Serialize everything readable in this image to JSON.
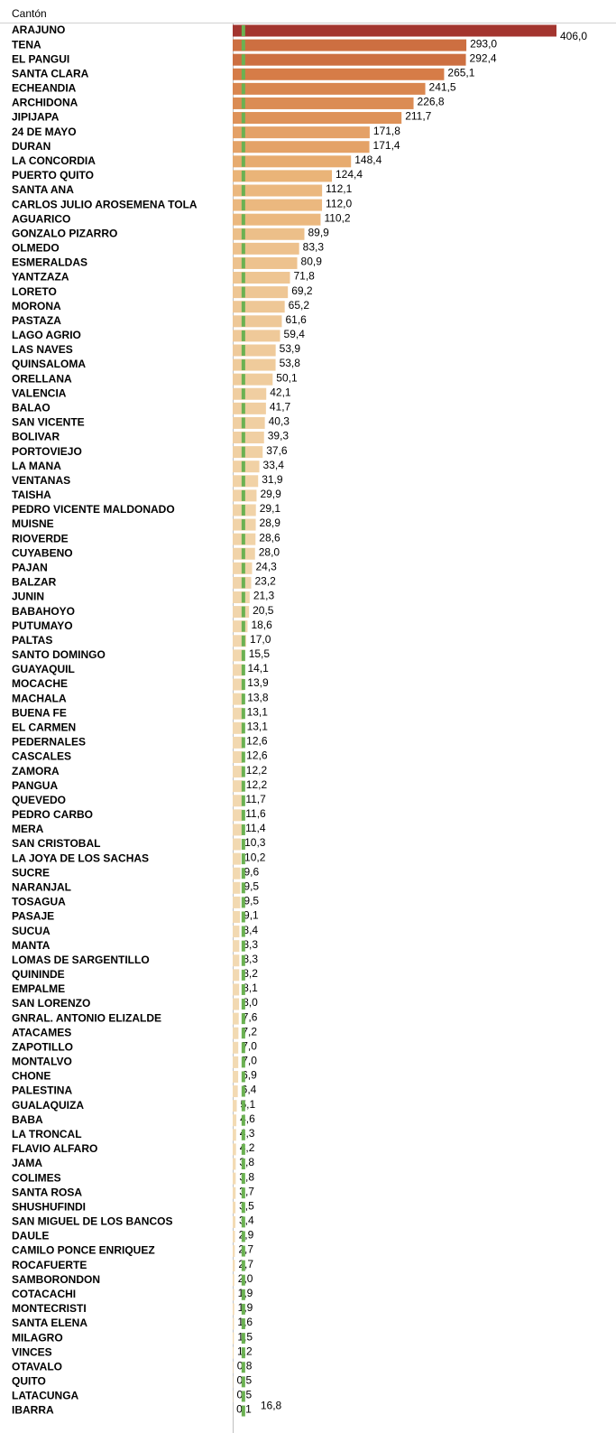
{
  "chart_data": {
    "type": "bar",
    "orientation": "horizontal",
    "header": "Cantón",
    "categories": [
      "ARAJUNO",
      "TENA",
      "EL PANGUI",
      "SANTA CLARA",
      "ECHEANDIA",
      "ARCHIDONA",
      "JIPIJAPA",
      "24 DE MAYO",
      "DURAN",
      "LA CONCORDIA",
      "PUERTO QUITO",
      "SANTA ANA",
      "CARLOS JULIO AROSEMENA TOLA",
      "AGUARICO",
      "GONZALO PIZARRO",
      "OLMEDO",
      "ESMERALDAS",
      "YANTZAZA",
      "LORETO",
      "MORONA",
      "PASTAZA",
      "LAGO AGRIO",
      "LAS NAVES",
      "QUINSALOMA",
      "ORELLANA",
      "VALENCIA",
      "BALAO",
      "SAN VICENTE",
      "BOLIVAR",
      "PORTOVIEJO",
      "LA MANA",
      "VENTANAS",
      "TAISHA",
      "PEDRO VICENTE MALDONADO",
      "MUISNE",
      "RIOVERDE",
      "CUYABENO",
      "PAJAN",
      "BALZAR",
      "JUNIN",
      "BABAHOYO",
      "PUTUMAYO",
      "PALTAS",
      "SANTO DOMINGO",
      "GUAYAQUIL",
      "MOCACHE",
      "MACHALA",
      "BUENA FE",
      "EL CARMEN",
      "PEDERNALES",
      "CASCALES",
      "ZAMORA",
      "PANGUA",
      "QUEVEDO",
      "PEDRO CARBO",
      "MERA",
      "SAN CRISTOBAL",
      "LA JOYA DE LOS SACHAS",
      "SUCRE",
      "NARANJAL",
      "TOSAGUA",
      "PASAJE",
      "SUCUA",
      "MANTA",
      "LOMAS DE SARGENTILLO",
      "QUININDE",
      "EMPALME",
      "SAN LORENZO",
      "GNRAL. ANTONIO ELIZALDE",
      "ATACAMES",
      "ZAPOTILLO",
      "MONTALVO",
      "CHONE",
      "PALESTINA",
      "GUALAQUIZA",
      "BABA",
      "LA TRONCAL",
      "FLAVIO ALFARO",
      "JAMA",
      "COLIMES",
      "SANTA ROSA",
      "SHUSHUFINDI",
      "SAN MIGUEL DE LOS BANCOS",
      "DAULE",
      "CAMILO PONCE ENRIQUEZ",
      "ROCAFUERTE",
      "SAMBORONDON",
      "COTACACHI",
      "MONTECRISTI",
      "SANTA ELENA",
      "MILAGRO",
      "VINCES",
      "OTAVALO",
      "QUITO",
      "LATACUNGA",
      "IBARRA"
    ],
    "values": [
      406.0,
      293.0,
      292.4,
      265.1,
      241.5,
      226.8,
      211.7,
      171.8,
      171.4,
      148.4,
      124.4,
      112.1,
      112.0,
      110.2,
      89.9,
      83.3,
      80.9,
      71.8,
      69.2,
      65.2,
      61.6,
      59.4,
      53.9,
      53.8,
      50.1,
      42.1,
      41.7,
      40.3,
      39.3,
      37.6,
      33.4,
      31.9,
      29.9,
      29.1,
      28.9,
      28.6,
      28.0,
      24.3,
      23.2,
      21.3,
      20.5,
      18.6,
      17.0,
      15.5,
      14.1,
      13.9,
      13.8,
      13.1,
      13.1,
      12.6,
      12.6,
      12.2,
      12.2,
      11.7,
      11.6,
      11.4,
      10.3,
      10.2,
      9.6,
      9.5,
      9.5,
      9.1,
      8.4,
      8.3,
      8.3,
      8.2,
      8.1,
      8.0,
      7.6,
      7.2,
      7.0,
      7.0,
      6.9,
      6.4,
      5.1,
      4.6,
      4.3,
      4.2,
      3.8,
      3.8,
      3.7,
      3.5,
      3.4,
      2.9,
      2.7,
      2.7,
      2.0,
      1.9,
      1.9,
      1.6,
      1.5,
      1.2,
      0.8,
      0.5,
      0.5,
      0.1
    ],
    "value_labels": [
      "406,0",
      "293,0",
      "292,4",
      "265,1",
      "241,5",
      "226,8",
      "211,7",
      "171,8",
      "171,4",
      "148,4",
      "124,4",
      "112,1",
      "112,0",
      "110,2",
      "89,9",
      "83,3",
      "80,9",
      "71,8",
      "69,2",
      "65,2",
      "61,6",
      "59,4",
      "53,9",
      "53,8",
      "50,1",
      "42,1",
      "41,7",
      "40,3",
      "39,3",
      "37,6",
      "33,4",
      "31,9",
      "29,9",
      "29,1",
      "28,9",
      "28,6",
      "28,0",
      "24,3",
      "23,2",
      "21,3",
      "20,5",
      "18,6",
      "17,0",
      "15,5",
      "14,1",
      "13,9",
      "13,8",
      "13,1",
      "13,1",
      "12,6",
      "12,6",
      "12,2",
      "12,2",
      "11,7",
      "11,6",
      "11,4",
      "10,3",
      "10,2",
      "9,6",
      "9,5",
      "9,5",
      "9,1",
      "8,4",
      "8,3",
      "8,3",
      "8,2",
      "8,1",
      "8,0",
      "7,6",
      "7,2",
      "7,0",
      "7,0",
      "6,9",
      "6,4",
      "5,1",
      "4,6",
      "4,3",
      "4,2",
      "3,8",
      "3,8",
      "3,7",
      "3,5",
      "3,4",
      "2,9",
      "2,7",
      "2,7",
      "2,0",
      "1,9",
      "1,9",
      "1,6",
      "1,5",
      "1,2",
      "0,8",
      "0,5",
      "0,5",
      "0,1"
    ],
    "color_scale": [
      "#f3dcb6",
      "#e9b073",
      "#d57a45",
      "#a3352f"
    ],
    "xlim": [
      0,
      406
    ],
    "reference_line": {
      "value": 16.8,
      "label": "16,8",
      "color": "#6bb152"
    }
  }
}
